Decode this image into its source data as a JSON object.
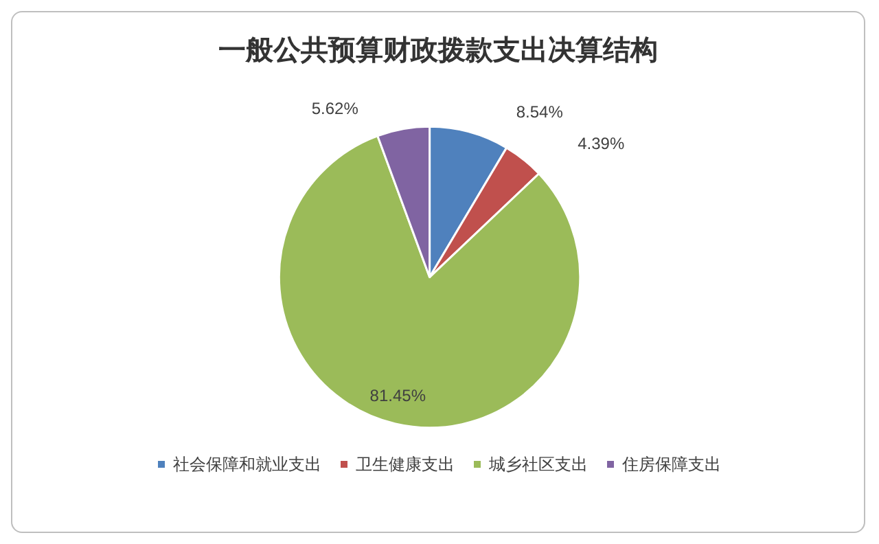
{
  "chart_data": {
    "type": "pie",
    "title": "一般公共预算财政拨款支出决算结构",
    "categories": [
      "社会保障和就业支出",
      "卫生健康支出",
      "城乡社区支出",
      "住房保障支出"
    ],
    "values": [
      8.54,
      4.39,
      81.45,
      5.62
    ],
    "value_labels": [
      "8.54%",
      "4.39%",
      "81.45%",
      "5.62%"
    ],
    "colors": [
      "#4f81bd",
      "#c0504d",
      "#9bbb59",
      "#8064a2"
    ],
    "legend": "bottom"
  }
}
